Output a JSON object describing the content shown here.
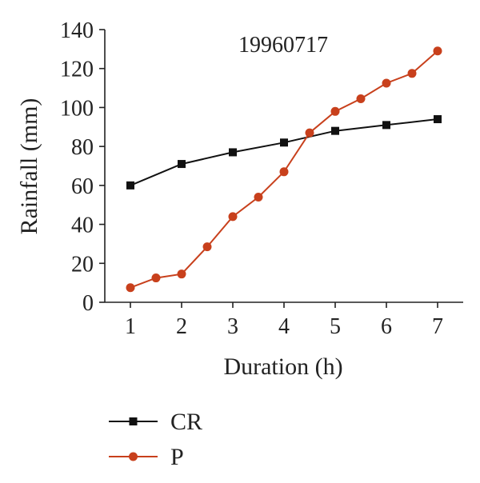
{
  "chart_data": {
    "type": "line",
    "annotation": "19960717",
    "xlabel": "Duration (h)",
    "ylabel": "Rainfall (mm)",
    "xlim": [
      0.5,
      7.5
    ],
    "ylim": [
      0,
      140
    ],
    "xticks": [
      1,
      2,
      3,
      4,
      5,
      6,
      7
    ],
    "yticks": [
      0,
      20,
      40,
      60,
      80,
      100,
      120,
      140
    ],
    "grid": false,
    "legend_position": "bottom-left",
    "series": [
      {
        "name": "CR",
        "color": "#111111",
        "marker": "square",
        "x": [
          1,
          2,
          3,
          4,
          5,
          6,
          7
        ],
        "y": [
          60,
          71,
          77,
          82,
          88,
          91,
          94
        ]
      },
      {
        "name": "P",
        "color": "#c8401c",
        "marker": "circle",
        "x": [
          1,
          1.5,
          2,
          2.5,
          3,
          3.5,
          4,
          4.5,
          5,
          5.5,
          6,
          6.5,
          7
        ],
        "y": [
          7.5,
          12.5,
          14.5,
          28.5,
          44,
          54,
          67,
          87,
          98,
          104.5,
          112.5,
          117.5,
          129
        ]
      }
    ]
  }
}
